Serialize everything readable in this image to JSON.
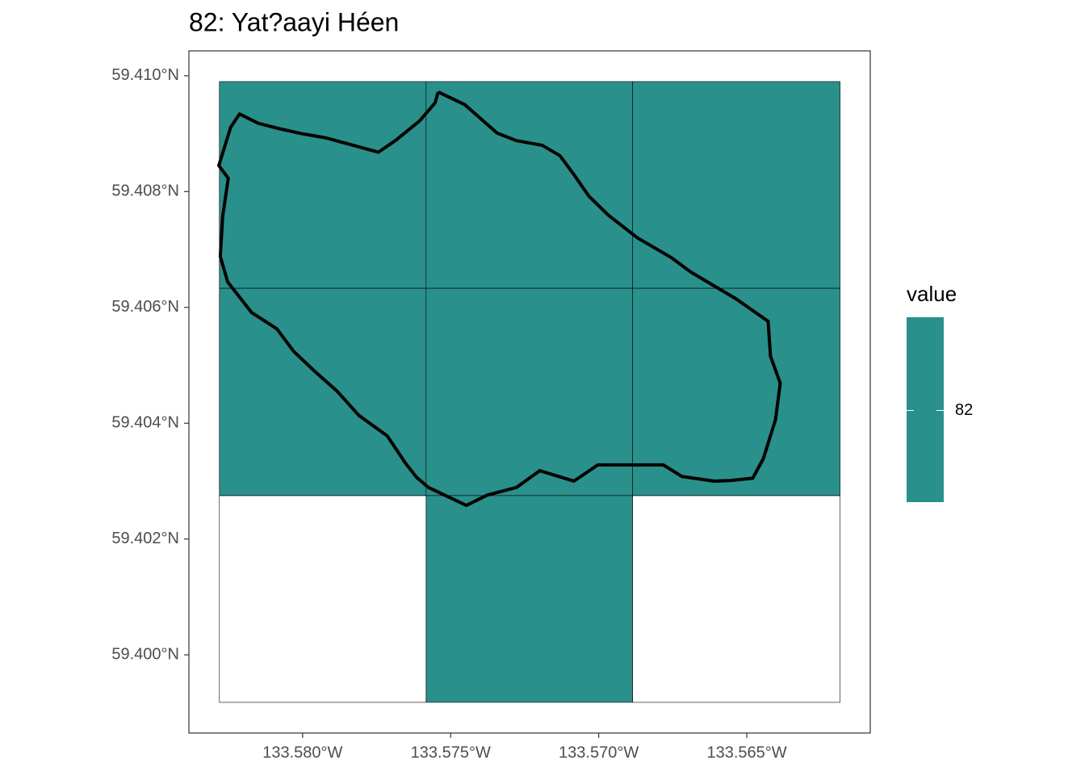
{
  "chart_data": {
    "type": "raster",
    "title": "82: Yat?aayi Héen",
    "xlim": [
      -133.58384,
      -133.56083
    ],
    "ylim": [
      59.39865,
      59.41043
    ],
    "xticks": [
      {
        "value": -133.58,
        "label": "133.580°W"
      },
      {
        "value": -133.575,
        "label": "133.575°W"
      },
      {
        "value": -133.57,
        "label": "133.570°W"
      },
      {
        "value": -133.565,
        "label": "133.565°W"
      }
    ],
    "yticks": [
      {
        "value": 59.4,
        "label": "59.400°N"
      },
      {
        "value": 59.402,
        "label": "59.402°N"
      },
      {
        "value": 59.404,
        "label": "59.404°N"
      },
      {
        "value": 59.406,
        "label": "59.406°N"
      },
      {
        "value": 59.408,
        "label": "59.408°N"
      },
      {
        "value": 59.41,
        "label": "59.410°N"
      }
    ],
    "raster": {
      "x_edges": [
        -133.58281,
        -133.57583,
        -133.56886,
        -133.56185
      ],
      "y_edges": [
        59.4099,
        59.40633,
        59.40275,
        59.39918
      ],
      "values": [
        [
          82,
          82,
          82
        ],
        [
          82,
          82,
          82
        ],
        [
          null,
          82,
          null
        ]
      ],
      "color": "#2a908b"
    },
    "outline": {
      "color": "#000000",
      "x": [
        -133.57542,
        -133.57452,
        -133.57343,
        -133.57278,
        -133.57191,
        -133.57131,
        -133.57082,
        -133.57033,
        -133.56967,
        -133.56869,
        -133.56755,
        -133.56689,
        -133.56537,
        -133.56428,
        -133.5642,
        -133.56387,
        -133.56403,
        -133.56444,
        -133.5648,
        -133.56556,
        -133.5661,
        -133.56719,
        -133.56782,
        -133.57003,
        -133.57084,
        -133.57199,
        -133.57278,
        -133.57376,
        -133.57447,
        -133.57575,
        -133.57616,
        -133.57654,
        -133.57714,
        -133.57809,
        -133.57883,
        -133.57962,
        -133.5803,
        -133.58087,
        -133.58172,
        -133.58253,
        -133.58278,
        -133.5827,
        -133.58251,
        -133.58283,
        -133.58243,
        -133.58213,
        -133.5815,
        -133.58082,
        -133.58003,
        -133.57924,
        -133.57837,
        -133.57744,
        -133.57687,
        -133.57605,
        -133.57553,
        -133.57542
      ],
      "y": [
        59.40972,
        59.4095,
        59.40901,
        59.40888,
        59.4088,
        59.40862,
        59.40828,
        59.40792,
        59.40759,
        59.4072,
        59.40686,
        59.40661,
        59.40615,
        59.40576,
        59.40516,
        59.40469,
        59.40406,
        59.40339,
        59.40305,
        59.40301,
        59.403,
        59.40308,
        59.40328,
        59.40328,
        59.403,
        59.40318,
        59.40289,
        59.40276,
        59.40258,
        59.40289,
        59.40307,
        59.40332,
        59.40378,
        59.40413,
        59.40455,
        59.40491,
        59.40524,
        59.40563,
        59.40591,
        59.40644,
        59.40688,
        59.40757,
        59.40823,
        59.40845,
        59.40911,
        59.40934,
        59.40918,
        59.40909,
        59.409,
        59.40893,
        59.40881,
        59.40868,
        59.40888,
        59.40922,
        59.40953,
        59.40972
      ]
    },
    "legend": {
      "title": "value",
      "ticks": [
        82
      ]
    }
  }
}
